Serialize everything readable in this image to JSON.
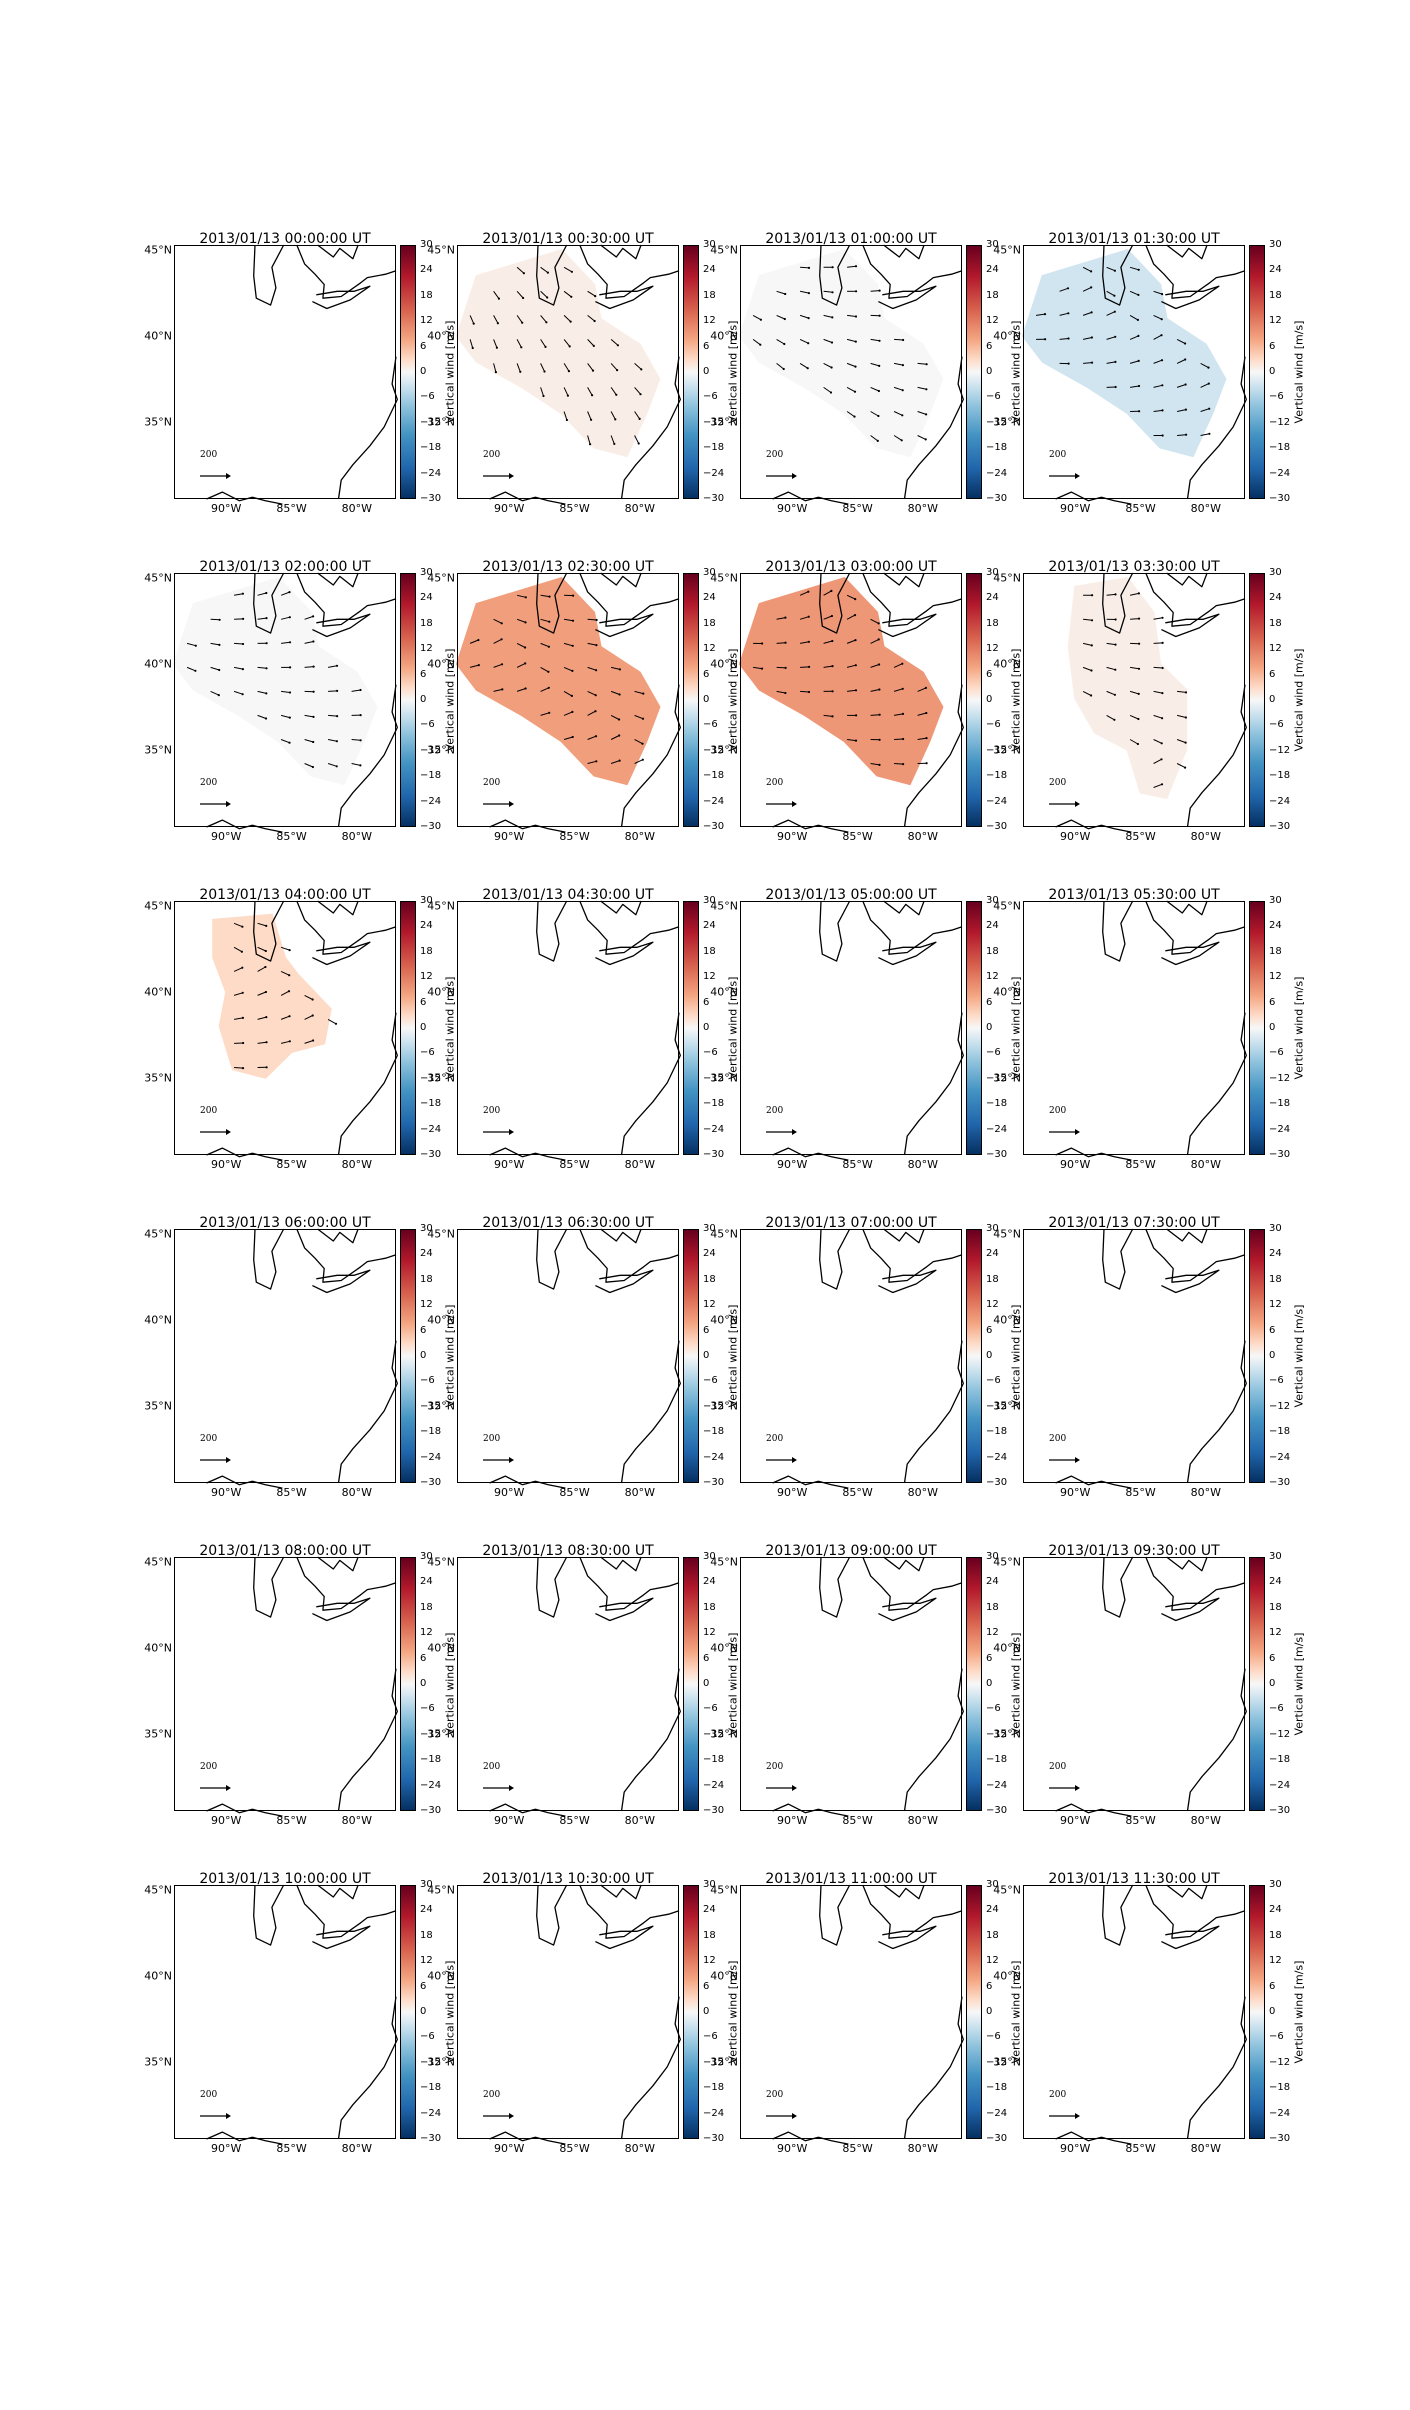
{
  "chart_data": {
    "type": "heatmap",
    "description_of_content": "",
    "colorbar": {
      "label": "Vertical wind [m/s]",
      "ticks": [
        "30",
        "24",
        "18",
        "12",
        "6",
        "0",
        "−6",
        "−12",
        "−18",
        "−24",
        "−30"
      ],
      "range": [
        -30,
        30
      ],
      "colormap": "red-white-blue"
    },
    "lat_ticks": [
      "45°N",
      "40°N",
      "35°N"
    ],
    "lon_ticks": [
      "90°W",
      "85°W",
      "80°W"
    ],
    "quiver_key_label": "200",
    "panels": [
      {
        "title": "2013/01/13 00:00:00 UT",
        "region": "none",
        "value": 0
      },
      {
        "title": "2013/01/13 00:30:00 UT",
        "region": "wide",
        "value": 1
      },
      {
        "title": "2013/01/13 01:00:00 UT",
        "region": "wide",
        "value": 0
      },
      {
        "title": "2013/01/13 01:30:00 UT",
        "region": "wide",
        "value": -3
      },
      {
        "title": "2013/01/13 02:00:00 UT",
        "region": "wide",
        "value": 0
      },
      {
        "title": "2013/01/13 02:30:00 UT",
        "region": "wide",
        "value": 11
      },
      {
        "title": "2013/01/13 03:00:00 UT",
        "region": "wide",
        "value": 12
      },
      {
        "title": "2013/01/13 03:30:00 UT",
        "region": "mid",
        "value": 1
      },
      {
        "title": "2013/01/13 04:00:00 UT",
        "region": "small",
        "value": 3
      },
      {
        "title": "2013/01/13 04:30:00 UT",
        "region": "none",
        "value": 0
      },
      {
        "title": "2013/01/13 05:00:00 UT",
        "region": "none",
        "value": 0
      },
      {
        "title": "2013/01/13 05:30:00 UT",
        "region": "none",
        "value": 0
      },
      {
        "title": "2013/01/13 06:00:00 UT",
        "region": "none",
        "value": 0
      },
      {
        "title": "2013/01/13 06:30:00 UT",
        "region": "none",
        "value": 0
      },
      {
        "title": "2013/01/13 07:00:00 UT",
        "region": "none",
        "value": 0
      },
      {
        "title": "2013/01/13 07:30:00 UT",
        "region": "none",
        "value": 0
      },
      {
        "title": "2013/01/13 08:00:00 UT",
        "region": "none",
        "value": 0
      },
      {
        "title": "2013/01/13 08:30:00 UT",
        "region": "none",
        "value": 0
      },
      {
        "title": "2013/01/13 09:00:00 UT",
        "region": "none",
        "value": 0
      },
      {
        "title": "2013/01/13 09:30:00 UT",
        "region": "none",
        "value": 0
      },
      {
        "title": "2013/01/13 10:00:00 UT",
        "region": "none",
        "value": 0
      },
      {
        "title": "2013/01/13 10:30:00 UT",
        "region": "none",
        "value": 0
      },
      {
        "title": "2013/01/13 11:00:00 UT",
        "region": "none",
        "value": 0
      },
      {
        "title": "2013/01/13 11:30:00 UT",
        "region": "none",
        "value": 0
      }
    ]
  }
}
